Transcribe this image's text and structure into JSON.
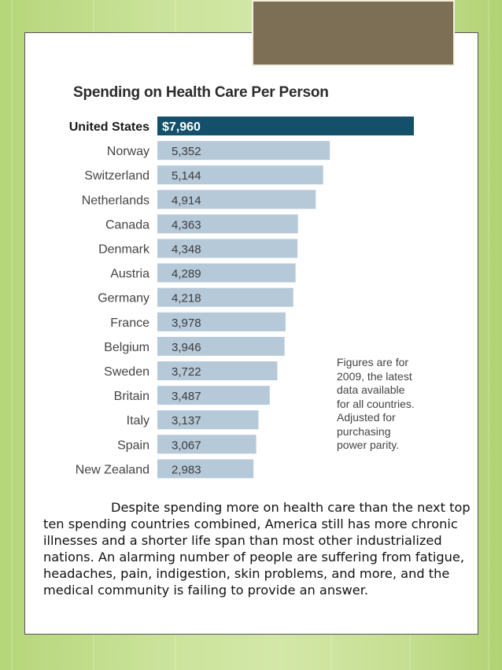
{
  "chart_data": {
    "type": "bar",
    "orientation": "horizontal",
    "title": "Spending on Health Care Per Person",
    "categories": [
      "United States",
      "Norway",
      "Switzerland",
      "Netherlands",
      "Canada",
      "Denmark",
      "Austria",
      "Germany",
      "France",
      "Belgium",
      "Sweden",
      "Britain",
      "Italy",
      "Spain",
      "New Zealand"
    ],
    "values": [
      7960,
      5352,
      5144,
      4914,
      4363,
      4348,
      4289,
      4218,
      3978,
      3946,
      3722,
      3487,
      3137,
      3067,
      2983
    ],
    "value_labels": [
      "$7,960",
      "5,352",
      "5,144",
      "4,914",
      "4,363",
      "4,348",
      "4,289",
      "4,218",
      "3,978",
      "3,946",
      "3,722",
      "3,487",
      "3,137",
      "3,067",
      "2,983"
    ],
    "highlight_index": 0,
    "highlight_color": "#14506a",
    "bar_color": "#b6c9d9",
    "annotation": "Figures are for\n2009, the latest\ndata available\nfor all countries.\nAdjusted for\npurchasing\npower parity.",
    "xlabel": "",
    "ylabel": "",
    "grid": false
  },
  "caption": "Despite spending more on health care than the next top ten spending countries combined, America still has more chronic illnesses and a shorter life span than most other industrialized nations. An alarming number of people are suffering from fatigue, headaches, pain, indigestion, skin problems, and more, and the medical community is failing to provide an answer."
}
